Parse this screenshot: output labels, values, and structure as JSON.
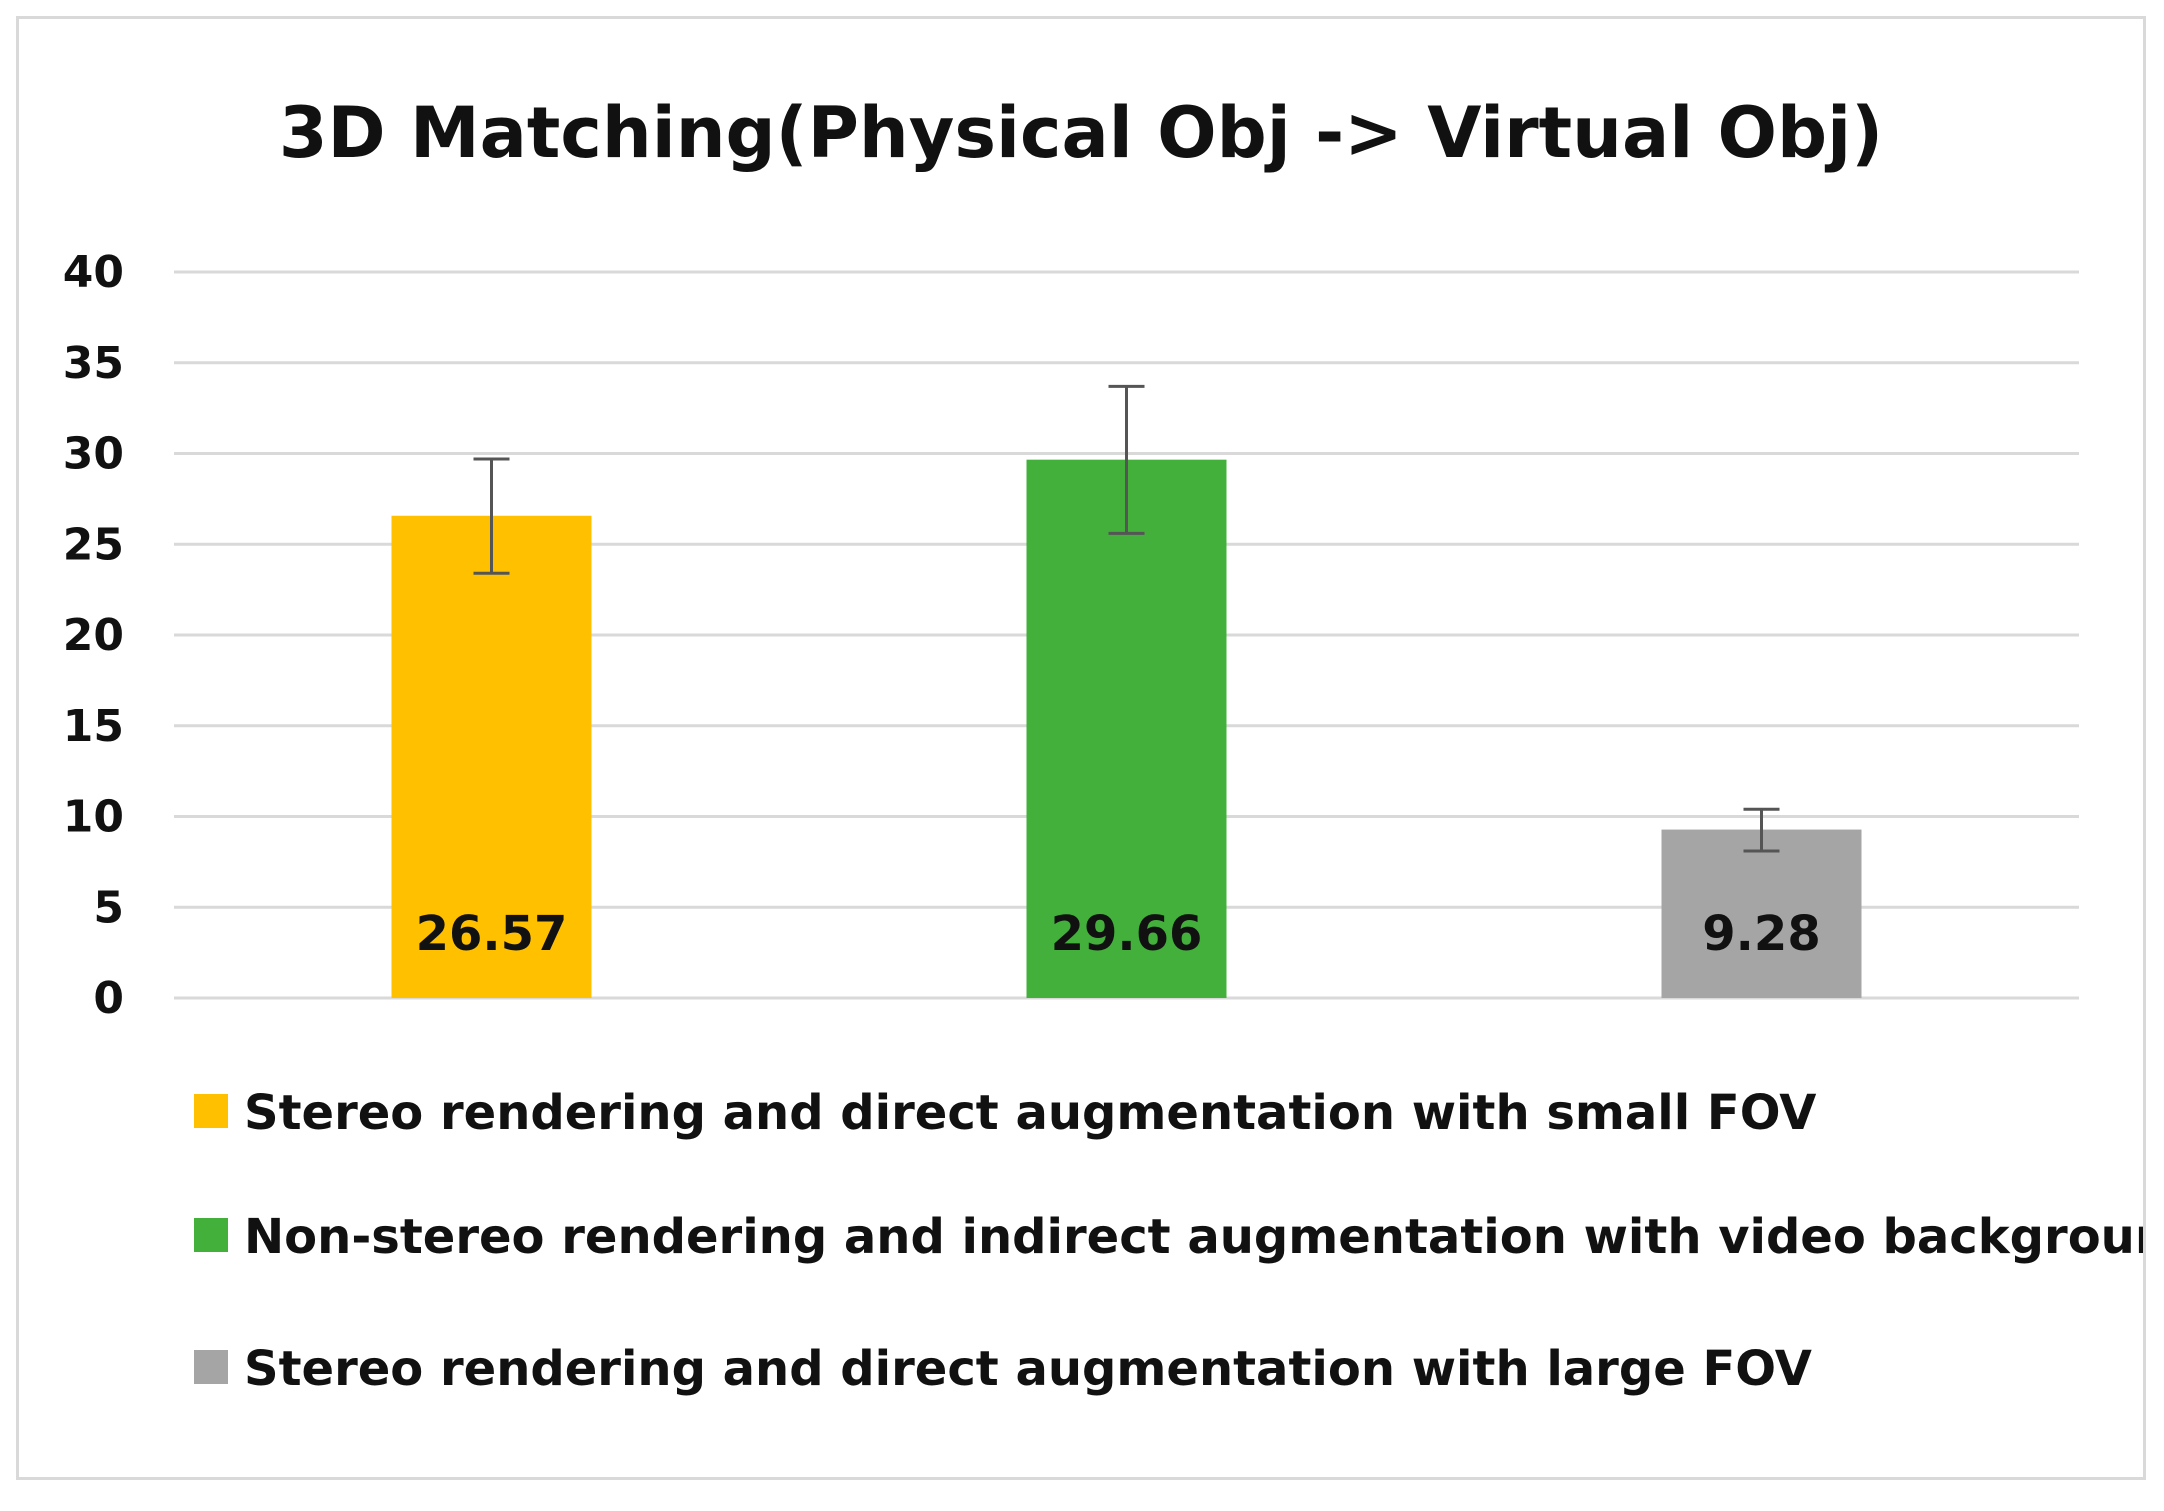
{
  "chart_data": {
    "type": "bar",
    "title": "3D Matching(Physical Obj -> Virtual Obj)",
    "xlabel": "",
    "ylabel": "",
    "ylim": [
      0,
      40
    ],
    "yticks": [
      0,
      5,
      10,
      15,
      20,
      25,
      30,
      35,
      40
    ],
    "grid": true,
    "legend_position": "bottom",
    "series": [
      {
        "name": "Stereo rendering and direct augmentation with small FOV",
        "value": 26.57,
        "label": "26.57",
        "error_low": 23.4,
        "error_high": 29.7,
        "color": "#FFC000"
      },
      {
        "name": "Non-stereo rendering and indirect augmentation with video background",
        "value": 29.66,
        "label": "29.66",
        "error_low": 25.6,
        "error_high": 33.7,
        "color": "#43B03C"
      },
      {
        "name": "Stereo rendering and direct augmentation with large FOV",
        "value": 9.28,
        "label": "9.28",
        "error_low": 8.1,
        "error_high": 10.4,
        "color": "#A5A5A5"
      }
    ],
    "colors": {
      "gridline": "#d9d9d9",
      "error_bar": "#555555",
      "frame": "#d9d9d9"
    }
  }
}
